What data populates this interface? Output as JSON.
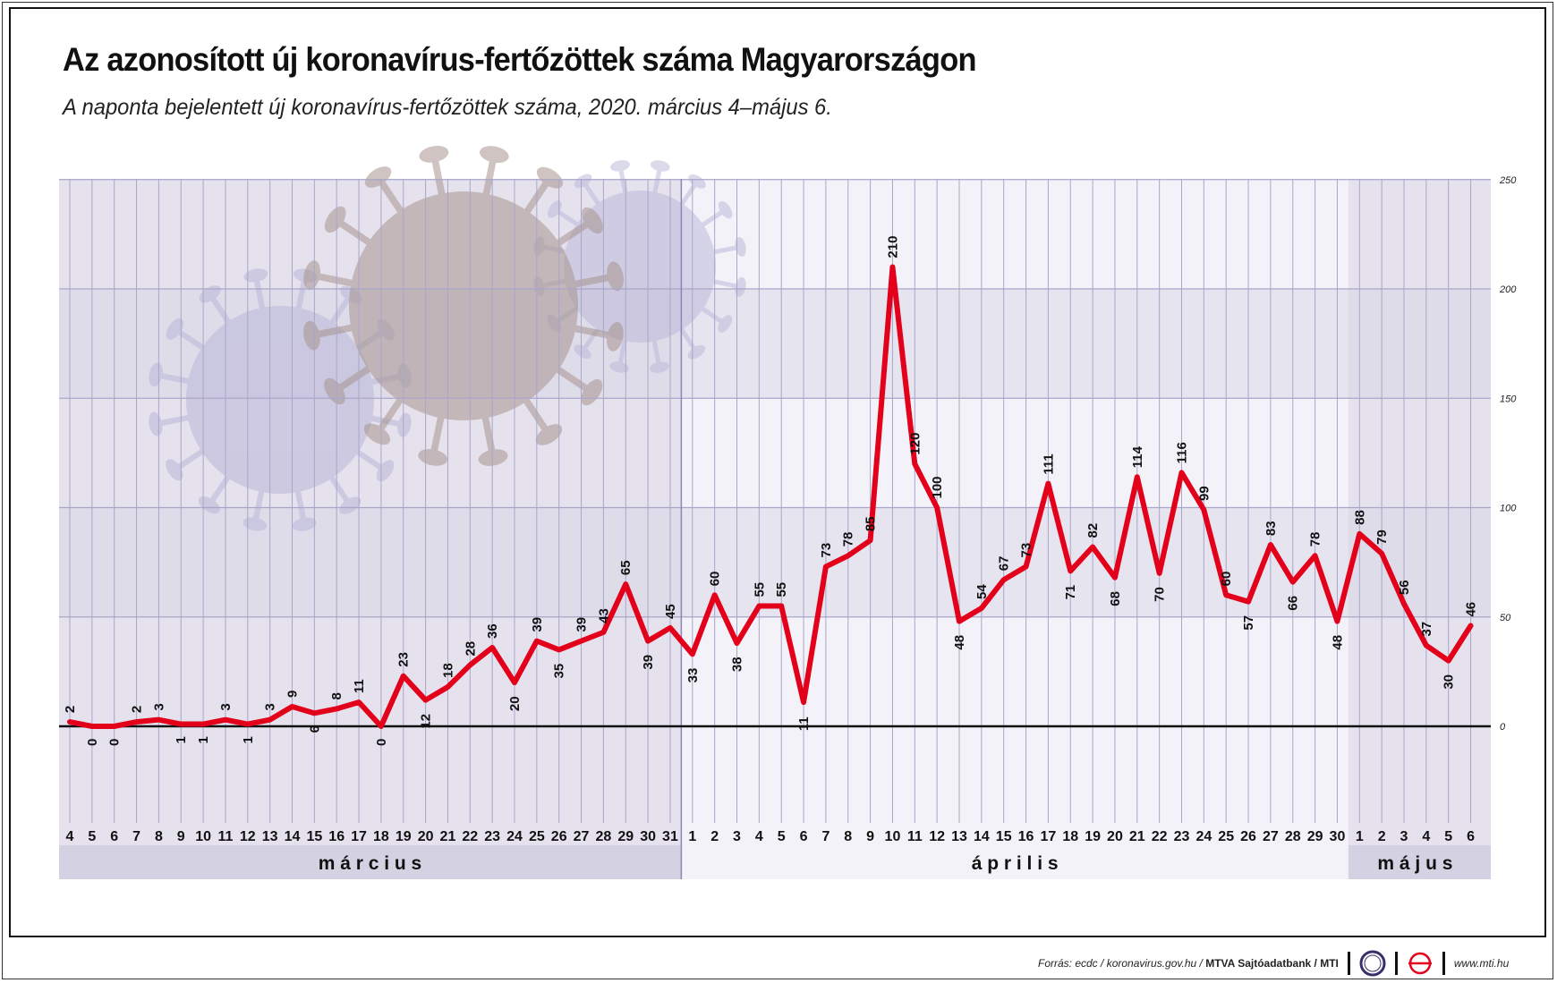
{
  "title": "Az azonosított új koronavírus-fertőzöttek száma Magyarországon",
  "subtitle": "A naponta bejelentett új koronavírus-fertőzöttek száma, 2020. március 4–május 6.",
  "footer": {
    "source_prefix": "Forrás: ecdc / koronavirus.gov.hu / ",
    "source_bold": "MTVA Sajtóadatbank / MTI",
    "website": "www.mti.hu"
  },
  "colors": {
    "line": "#e3001b",
    "band_dark": "#e6e4ef",
    "band_light": "#f3f2f8",
    "highlight_area": "#d9d6e6",
    "grid": "#a9a6c8"
  },
  "icons": [
    "coronavirus-illustration",
    "mtva-logo-icon",
    "mti-logo-icon"
  ],
  "chart_data": {
    "type": "line",
    "title": "Az azonosított új koronavírus-fertőzöttek száma Magyarországon",
    "x": [
      "4",
      "5",
      "6",
      "7",
      "8",
      "9",
      "10",
      "11",
      "12",
      "13",
      "14",
      "15",
      "16",
      "17",
      "18",
      "19",
      "20",
      "21",
      "22",
      "23",
      "24",
      "25",
      "26",
      "27",
      "28",
      "29",
      "30",
      "31",
      "1",
      "2",
      "3",
      "4",
      "5",
      "6",
      "7",
      "8",
      "9",
      "10",
      "11",
      "12",
      "13",
      "14",
      "15",
      "16",
      "17",
      "18",
      "19",
      "20",
      "21",
      "22",
      "23",
      "24",
      "25",
      "26",
      "27",
      "28",
      "29",
      "30",
      "1",
      "2",
      "3",
      "4",
      "5",
      "6"
    ],
    "months": [
      {
        "label": "m á r c i u s",
        "start": 0,
        "end": 27
      },
      {
        "label": "á p r i l i s",
        "start": 28,
        "end": 57
      },
      {
        "label": "m á j u s",
        "start": 58,
        "end": 63
      }
    ],
    "series": [
      {
        "values": [
          2,
          0,
          0,
          2,
          3,
          1,
          1,
          3,
          1,
          3,
          9,
          6,
          8,
          11,
          0,
          23,
          12,
          18,
          28,
          36,
          20,
          39,
          35,
          39,
          43,
          65,
          39,
          45,
          33,
          60,
          38,
          55,
          55,
          11,
          73,
          78,
          85,
          210,
          120,
          100,
          48,
          54,
          67,
          73,
          111,
          71,
          82,
          68,
          114,
          70,
          116,
          99,
          60,
          57,
          83,
          66,
          78,
          48,
          88,
          79,
          56,
          37,
          30,
          46
        ]
      }
    ],
    "ylim": [
      0,
      250
    ],
    "yticks": [
      0,
      50,
      100,
      150,
      200,
      250
    ],
    "grid": true,
    "legend": "none"
  }
}
